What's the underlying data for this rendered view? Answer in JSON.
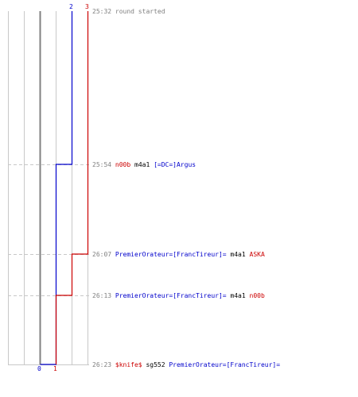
{
  "chart_data": {
    "type": "line",
    "title": "",
    "xlabel": "",
    "ylabel": "",
    "score_axis": {
      "labels": [
        {
          "text": "2",
          "color": "#0000cc",
          "pos": "top-left"
        },
        {
          "text": "3",
          "color": "#cc0000",
          "pos": "top-right"
        },
        {
          "text": "0",
          "color": "#0000cc",
          "pos": "bottom"
        },
        {
          "text": "1",
          "color": "#cc0000",
          "pos": "bottom"
        }
      ],
      "range": [
        -2,
        3
      ],
      "zero_value": 0
    },
    "series": [
      {
        "color": "#0000cc",
        "steps": [
          [
            0,
            2
          ],
          [
            1,
            1
          ],
          [
            4,
            0
          ]
        ]
      },
      {
        "color": "#cc0000",
        "steps": [
          [
            0,
            3
          ],
          [
            2,
            2
          ],
          [
            3,
            1
          ]
        ]
      }
    ],
    "events": [
      {
        "time": "25:32",
        "parts": [
          {
            "text": "round started",
            "color": "#808080"
          }
        ]
      },
      {
        "time": "25:54",
        "parts": [
          {
            "text": "n00b",
            "color": "#cc0000"
          },
          {
            "text": "m4a1",
            "color": "#000000"
          },
          {
            "text": "[=DC=]Argus",
            "color": "#0000cc"
          }
        ]
      },
      {
        "time": "26:07",
        "parts": [
          {
            "text": "PremierOrateur=[FrancTireur]=",
            "color": "#0000cc"
          },
          {
            "text": "m4a1",
            "color": "#000000"
          },
          {
            "text": "ASKA",
            "color": "#cc0000"
          }
        ]
      },
      {
        "time": "26:13",
        "parts": [
          {
            "text": "PremierOrateur=[FrancTireur]=",
            "color": "#0000cc"
          },
          {
            "text": "m4a1",
            "color": "#000000"
          },
          {
            "text": "n00b",
            "color": "#cc0000"
          }
        ]
      },
      {
        "time": "26:23",
        "parts": [
          {
            "text": "$knife$",
            "color": "#cc0000"
          },
          {
            "text": "sg552",
            "color": "#000000"
          },
          {
            "text": "PremierOrateur=[FrancTireur]=",
            "color": "#0000cc"
          }
        ]
      }
    ],
    "grid": true
  },
  "colors": {
    "grid": "#c8c8c8",
    "zero_line": "#808080",
    "dashed": "#c8c8c8",
    "time_text": "#808080"
  }
}
